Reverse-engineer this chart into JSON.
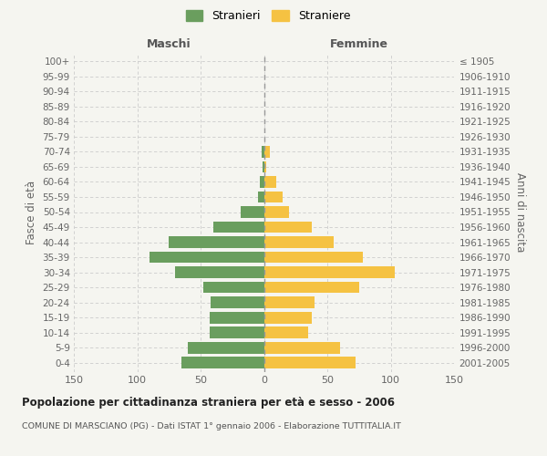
{
  "age_groups": [
    "0-4",
    "5-9",
    "10-14",
    "15-19",
    "20-24",
    "25-29",
    "30-34",
    "35-39",
    "40-44",
    "45-49",
    "50-54",
    "55-59",
    "60-64",
    "65-69",
    "70-74",
    "75-79",
    "80-84",
    "85-89",
    "90-94",
    "95-99",
    "100+"
  ],
  "birth_years": [
    "2001-2005",
    "1996-2000",
    "1991-1995",
    "1986-1990",
    "1981-1985",
    "1976-1980",
    "1971-1975",
    "1966-1970",
    "1961-1965",
    "1956-1960",
    "1951-1955",
    "1946-1950",
    "1941-1945",
    "1936-1940",
    "1931-1935",
    "1926-1930",
    "1921-1925",
    "1916-1920",
    "1911-1915",
    "1906-1910",
    "≤ 1905"
  ],
  "maschi": [
    65,
    60,
    43,
    43,
    42,
    48,
    70,
    90,
    75,
    40,
    18,
    5,
    3,
    1,
    2,
    0,
    0,
    0,
    0,
    0,
    0
  ],
  "femmine": [
    72,
    60,
    35,
    38,
    40,
    75,
    103,
    78,
    55,
    38,
    20,
    15,
    10,
    2,
    5,
    0,
    0,
    0,
    0,
    0,
    0
  ],
  "color_maschi": "#6a9e5e",
  "color_femmine": "#f5c242",
  "title": "Popolazione per cittadinanza straniera per età e sesso - 2006",
  "subtitle": "COMUNE DI MARSCIANO (PG) - Dati ISTAT 1° gennaio 2006 - Elaborazione TUTTITALIA.IT",
  "xlabel_left": "Maschi",
  "xlabel_right": "Femmine",
  "ylabel_left": "Fasce di età",
  "ylabel_right": "Anni di nascita",
  "legend_stranieri": "Stranieri",
  "legend_straniere": "Straniere",
  "xlim": 150,
  "background_color": "#f5f5f0",
  "grid_color": "#cccccc"
}
